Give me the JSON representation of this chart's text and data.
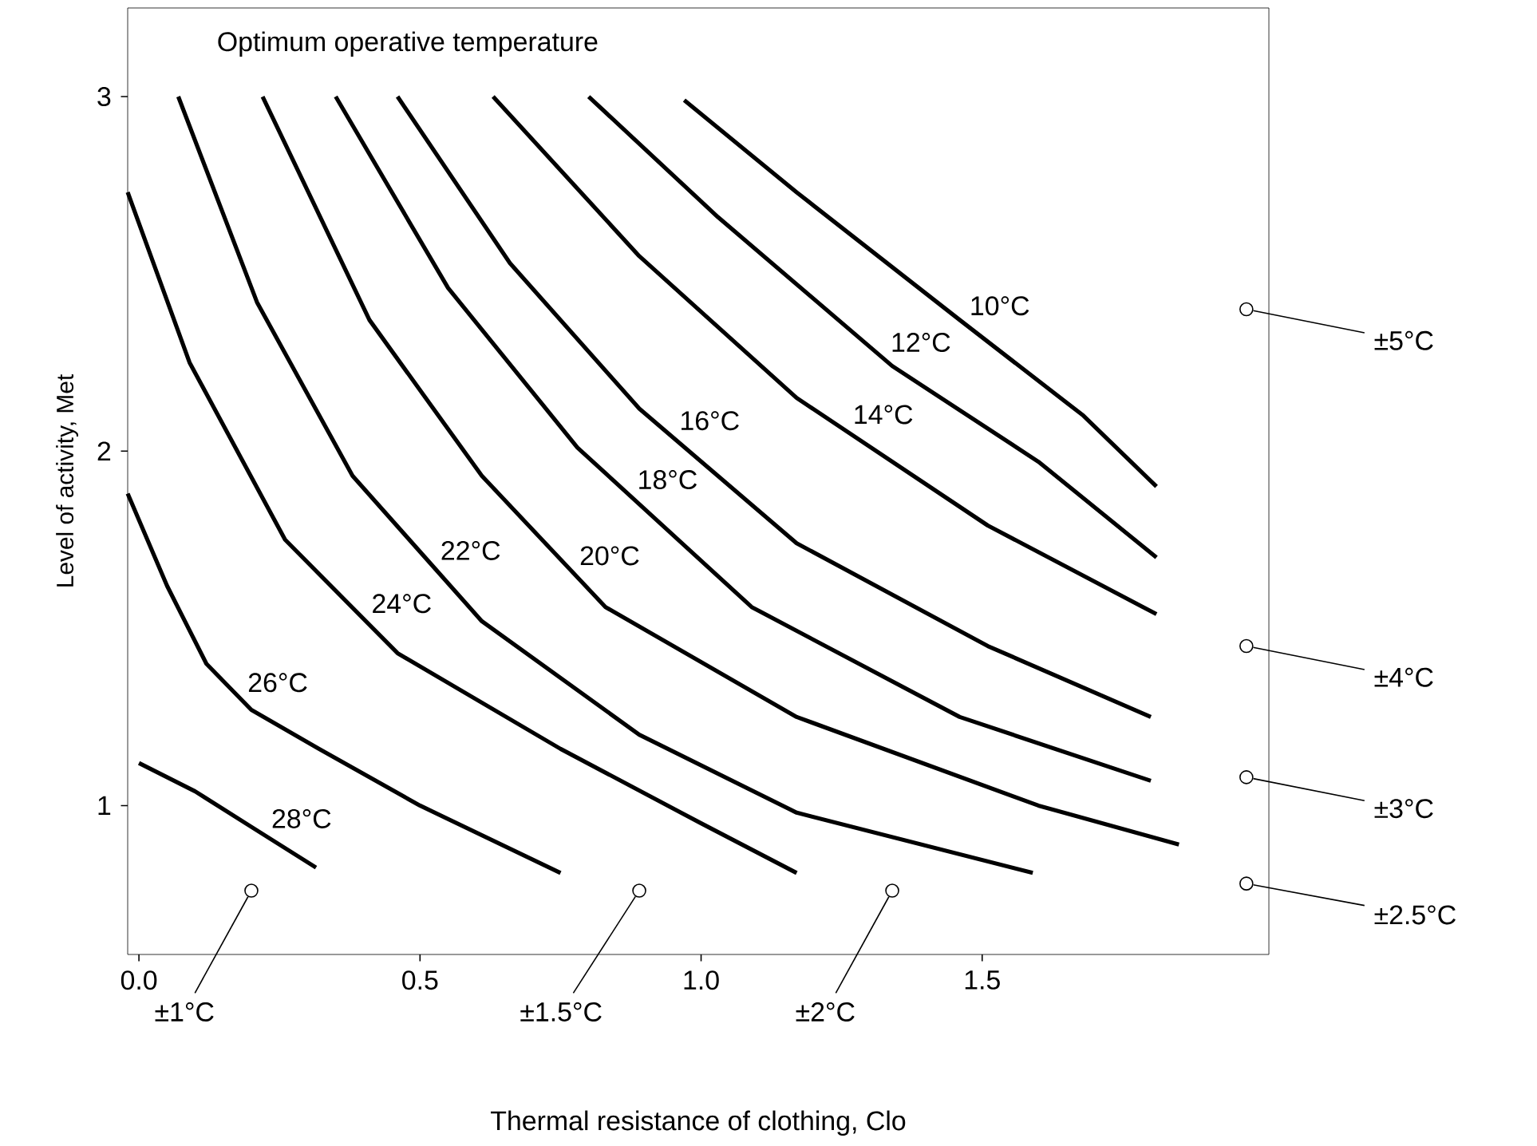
{
  "chart_data": {
    "type": "line",
    "title": "Optimum operative temperature",
    "xlabel": "Thermal resistance of clothing, Clo",
    "ylabel": "Level of activity, Met",
    "xlim": [
      -0.02,
      2.01
    ],
    "ylim": [
      0.58,
      3.25
    ],
    "xticks": [
      {
        "value": 0,
        "label": "0.0"
      },
      0.5,
      {
        "value": 1,
        "label": "1.0"
      },
      1.5
    ],
    "yticks": [
      1,
      2,
      3
    ],
    "marker": "none",
    "line_style": "solid",
    "grid": false,
    "series": [
      {
        "name": "28°C",
        "color": "#000000",
        "x": [
          0.0,
          0.1,
          0.2,
          0.315
        ],
        "values": [
          1.12,
          1.04,
          0.94,
          0.825
        ]
      },
      {
        "name": "26°C",
        "color": "#000000",
        "x": [
          -0.02,
          0.05,
          0.12,
          0.2,
          0.32,
          0.5,
          0.75
        ],
        "values": [
          1.88,
          1.62,
          1.4,
          1.27,
          1.16,
          1.0,
          0.81
        ]
      },
      {
        "name": "24°C",
        "color": "#000000",
        "x": [
          -0.02,
          0.09,
          0.26,
          0.46,
          0.75,
          1.0,
          1.17
        ],
        "values": [
          2.73,
          2.25,
          1.75,
          1.43,
          1.16,
          0.95,
          0.81
        ]
      },
      {
        "name": "22°C",
        "color": "#000000",
        "x": [
          0.07,
          0.21,
          0.38,
          0.61,
          0.89,
          1.17,
          1.59
        ],
        "values": [
          3.0,
          2.42,
          1.93,
          1.52,
          1.2,
          0.98,
          0.81
        ]
      },
      {
        "name": "20°C",
        "color": "#000000",
        "x": [
          0.22,
          0.41,
          0.61,
          0.83,
          1.17,
          1.6,
          1.85
        ],
        "values": [
          3.0,
          2.37,
          1.93,
          1.56,
          1.25,
          1.0,
          0.89
        ]
      },
      {
        "name": "18°C",
        "color": "#000000",
        "x": [
          0.35,
          0.55,
          0.78,
          1.09,
          1.46,
          1.8
        ],
        "values": [
          3.0,
          2.46,
          2.01,
          1.56,
          1.25,
          1.07
        ]
      },
      {
        "name": "16°C",
        "color": "#000000",
        "x": [
          0.46,
          0.66,
          0.89,
          1.17,
          1.51,
          1.8
        ],
        "values": [
          3.0,
          2.53,
          2.12,
          1.74,
          1.45,
          1.25
        ]
      },
      {
        "name": "14°C",
        "color": "#000000",
        "x": [
          0.63,
          0.89,
          1.17,
          1.51,
          1.81
        ],
        "values": [
          3.0,
          2.55,
          2.15,
          1.79,
          1.54
        ]
      },
      {
        "name": "12°C",
        "color": "#000000",
        "x": [
          0.8,
          1.03,
          1.34,
          1.6,
          1.81
        ],
        "values": [
          3.0,
          2.66,
          2.24,
          1.97,
          1.7
        ]
      },
      {
        "name": "10°C",
        "color": "#000000",
        "x": [
          0.97,
          1.17,
          1.46,
          1.68,
          1.81
        ],
        "values": [
          2.99,
          2.73,
          2.37,
          2.1,
          1.9
        ]
      }
    ],
    "annotations": [
      {
        "text": "±5°C",
        "x": 1.97,
        "y": 2.4
      },
      {
        "text": "±4°C",
        "x": 1.97,
        "y": 1.45
      },
      {
        "text": "±3°C",
        "x": 1.97,
        "y": 1.08
      },
      {
        "text": "±2.5°C",
        "x": 1.97,
        "y": 0.78
      },
      {
        "text": "±1°C",
        "x": 0.2,
        "y": 0.76
      },
      {
        "text": "±1.5°C",
        "x": 0.89,
        "y": 0.76
      },
      {
        "text": "±2°C",
        "x": 1.34,
        "y": 0.76
      }
    ]
  }
}
